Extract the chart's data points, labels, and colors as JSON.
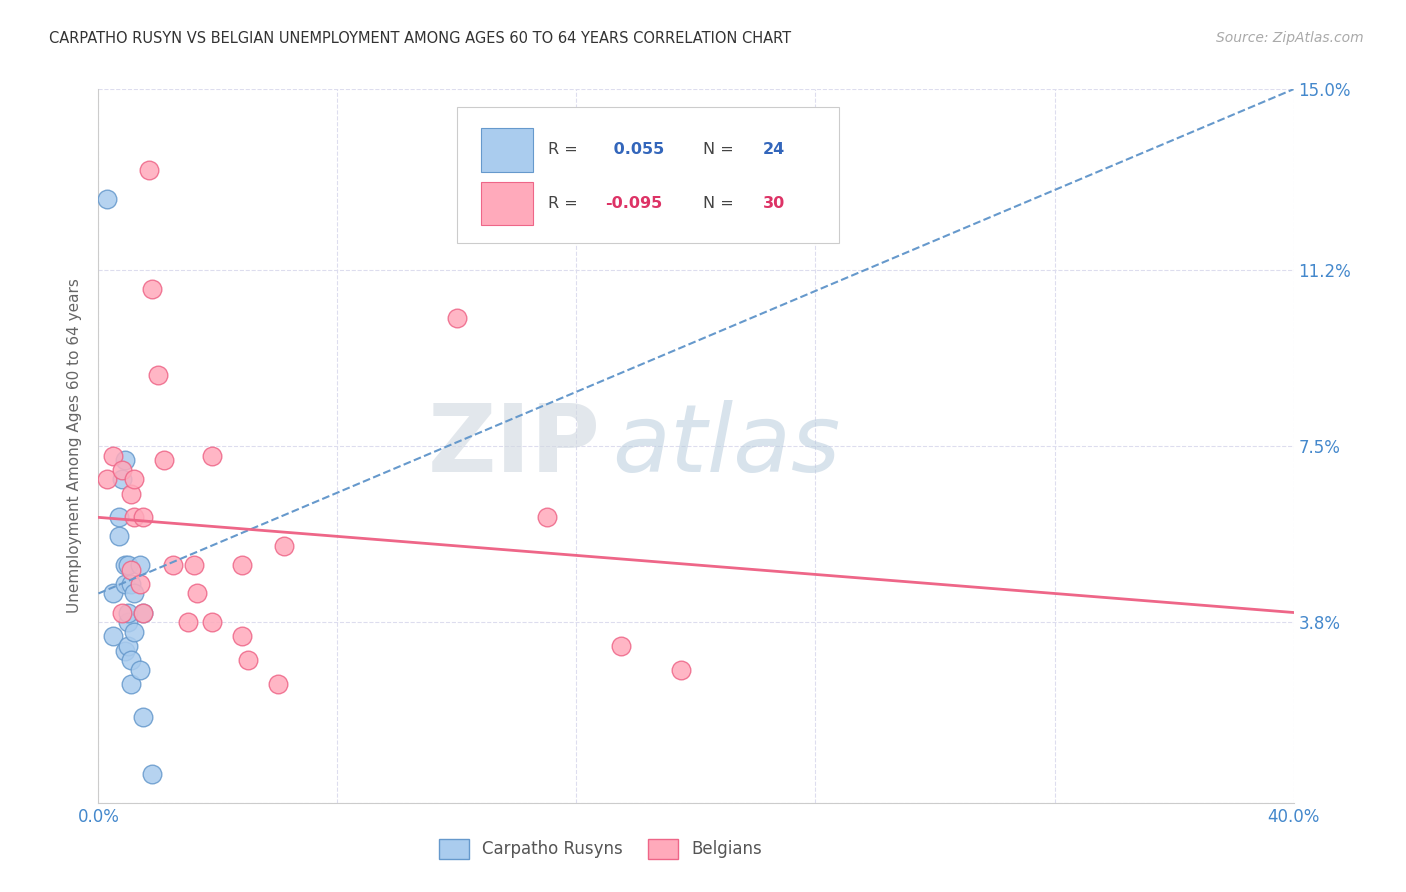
{
  "title": "CARPATHO RUSYN VS BELGIAN UNEMPLOYMENT AMONG AGES 60 TO 64 YEARS CORRELATION CHART",
  "source": "Source: ZipAtlas.com",
  "ylabel": "Unemployment Among Ages 60 to 64 years",
  "xlim": [
    0.0,
    0.4
  ],
  "ylim": [
    0.0,
    0.15
  ],
  "yticks": [
    0.0,
    0.038,
    0.075,
    0.112,
    0.15
  ],
  "ytick_labels": [
    "",
    "3.8%",
    "7.5%",
    "11.2%",
    "15.0%"
  ],
  "xticks": [
    0.0,
    0.08,
    0.16,
    0.24,
    0.32,
    0.4
  ],
  "xtick_labels": [
    "0.0%",
    "",
    "",
    "",
    "",
    "40.0%"
  ],
  "carpatho_R": 0.055,
  "carpatho_N": 24,
  "belgian_R": -0.095,
  "belgian_N": 30,
  "blue_color": "#aaccee",
  "pink_color": "#ffaabb",
  "blue_line_color": "#6699cc",
  "pink_line_color": "#ee6688",
  "watermark_zip": "ZIP",
  "watermark_atlas": "atlas",
  "grid_color": "#ddddee",
  "carpatho_x": [
    0.003,
    0.005,
    0.005,
    0.007,
    0.007,
    0.008,
    0.009,
    0.009,
    0.009,
    0.009,
    0.01,
    0.01,
    0.01,
    0.01,
    0.011,
    0.011,
    0.011,
    0.012,
    0.012,
    0.014,
    0.014,
    0.015,
    0.015,
    0.018
  ],
  "carpatho_y": [
    0.127,
    0.035,
    0.044,
    0.056,
    0.06,
    0.068,
    0.072,
    0.046,
    0.05,
    0.032,
    0.033,
    0.038,
    0.04,
    0.05,
    0.046,
    0.03,
    0.025,
    0.036,
    0.044,
    0.05,
    0.028,
    0.04,
    0.018,
    0.006
  ],
  "belgian_x": [
    0.003,
    0.005,
    0.008,
    0.008,
    0.011,
    0.011,
    0.012,
    0.012,
    0.014,
    0.015,
    0.015,
    0.017,
    0.018,
    0.02,
    0.022,
    0.025,
    0.03,
    0.032,
    0.033,
    0.038,
    0.038,
    0.048,
    0.048,
    0.05,
    0.06,
    0.062,
    0.12,
    0.15,
    0.175,
    0.195
  ],
  "belgian_y": [
    0.068,
    0.073,
    0.04,
    0.07,
    0.065,
    0.049,
    0.06,
    0.068,
    0.046,
    0.06,
    0.04,
    0.133,
    0.108,
    0.09,
    0.072,
    0.05,
    0.038,
    0.05,
    0.044,
    0.073,
    0.038,
    0.05,
    0.035,
    0.03,
    0.025,
    0.054,
    0.102,
    0.06,
    0.033,
    0.028
  ],
  "blue_trendline_x": [
    0.0,
    0.4
  ],
  "blue_trendline_y": [
    0.044,
    0.15
  ],
  "pink_trendline_x": [
    0.0,
    0.4
  ],
  "pink_trendline_y": [
    0.06,
    0.04
  ]
}
